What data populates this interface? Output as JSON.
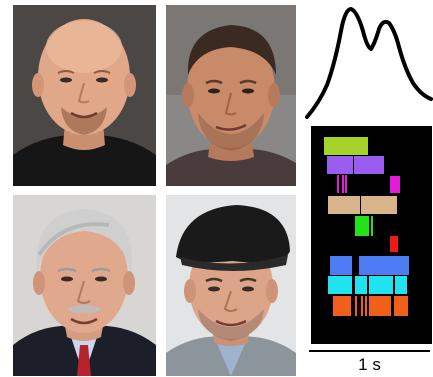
{
  "scale_bar": {
    "label": "1 s"
  },
  "colors": {
    "raster_background": "#000000",
    "waveform_stroke": "#000000",
    "lime": "#a6d32a",
    "purple": "#9b5cf0",
    "magenta": "#e01ed8",
    "tan": "#d9b48b",
    "green": "#22e21a",
    "red": "#f01a1a",
    "blue": "#4d7cf2",
    "cyan": "#21e3f0",
    "orange": "#f0601a"
  },
  "portraits": [
    {
      "name": "portrait-bald-man-smiling"
    },
    {
      "name": "portrait-man-short-hair"
    },
    {
      "name": "portrait-gray-haired-man-suit"
    },
    {
      "name": "portrait-man-flat-cap"
    }
  ]
}
